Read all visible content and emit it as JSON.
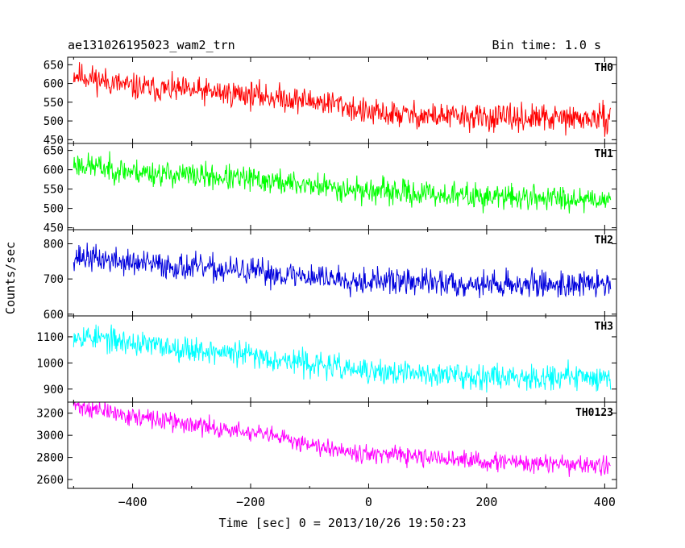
{
  "header": {
    "title": "ae131026195023_wam2_trn",
    "bin_time": "Bin time: 1.0 s"
  },
  "axes": {
    "ylabel": "Counts/sec",
    "xlabel": "Time [sec] 0 = 2013/10/26 19:50:23"
  },
  "chart_data": {
    "type": "line",
    "x_range": [
      -510,
      420
    ],
    "x_ticks": [
      -400,
      -200,
      0,
      200,
      400
    ],
    "x_tick_labels": [
      "−400",
      "−200",
      "0",
      "200",
      "400"
    ],
    "panels": [
      {
        "name": "TH0",
        "color": "#ff0000",
        "ylim": [
          440,
          670
        ],
        "y_ticks": [
          450,
          500,
          550,
          600,
          650
        ],
        "trend": [
          [
            -500,
            625
          ],
          [
            -400,
            590
          ],
          [
            -200,
            570
          ],
          [
            -50,
            545
          ],
          [
            0,
            520
          ],
          [
            200,
            508
          ],
          [
            410,
            505
          ]
        ],
        "noise": 28,
        "seed": 11
      },
      {
        "name": "TH1",
        "color": "#00ff00",
        "ylim": [
          445,
          668
        ],
        "y_ticks": [
          450,
          500,
          550,
          600,
          650
        ],
        "trend": [
          [
            -500,
            615
          ],
          [
            -400,
            595
          ],
          [
            -200,
            575
          ],
          [
            0,
            545
          ],
          [
            200,
            530
          ],
          [
            410,
            525
          ]
        ],
        "noise": 26,
        "seed": 23
      },
      {
        "name": "TH2",
        "color": "#0000dd",
        "ylim": [
          595,
          840
        ],
        "y_ticks": [
          600,
          700,
          800
        ],
        "trend": [
          [
            -500,
            765
          ],
          [
            -400,
            745
          ],
          [
            -200,
            720
          ],
          [
            0,
            695
          ],
          [
            200,
            685
          ],
          [
            410,
            685
          ]
        ],
        "noise": 30,
        "seed": 37
      },
      {
        "name": "TH3",
        "color": "#00ffff",
        "ylim": [
          850,
          1180
        ],
        "y_ticks": [
          900,
          1000,
          1100
        ],
        "trend": [
          [
            -500,
            1110
          ],
          [
            -400,
            1075
          ],
          [
            -200,
            1030
          ],
          [
            0,
            965
          ],
          [
            200,
            950
          ],
          [
            410,
            945
          ]
        ],
        "noise": 38,
        "seed": 53
      },
      {
        "name": "TH0123",
        "color": "#ff00ff",
        "ylim": [
          2520,
          3300
        ],
        "y_ticks": [
          2600,
          2800,
          3000,
          3200
        ],
        "trend": [
          [
            -500,
            3270
          ],
          [
            -400,
            3170
          ],
          [
            -200,
            3020
          ],
          [
            0,
            2830
          ],
          [
            200,
            2760
          ],
          [
            410,
            2720
          ]
        ],
        "noise": 65,
        "seed": 71
      }
    ]
  }
}
